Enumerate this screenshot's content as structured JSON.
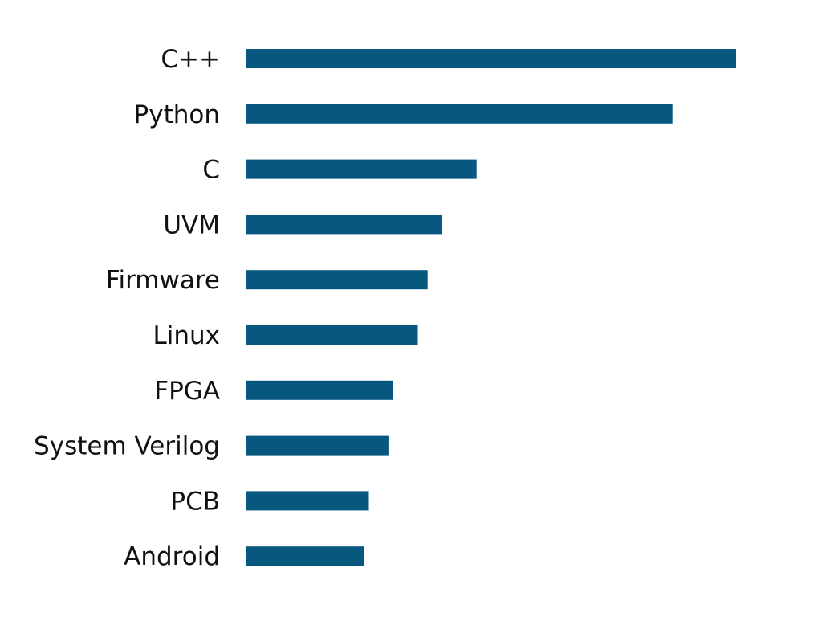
{
  "chart_data": {
    "type": "bar",
    "orientation": "horizontal",
    "categories": [
      "C++",
      "Python",
      "C",
      "UVM",
      "Firmware",
      "Linux",
      "FPGA",
      "System Verilog",
      "PCB",
      "Android"
    ],
    "values": [
      100,
      87,
      47,
      40,
      37,
      35,
      30,
      29,
      25,
      24
    ],
    "title": "",
    "xlabel": "",
    "ylabel": "",
    "xlim": [
      0,
      100
    ],
    "grid": false,
    "legend": "none",
    "bar_color": "#07577f"
  }
}
